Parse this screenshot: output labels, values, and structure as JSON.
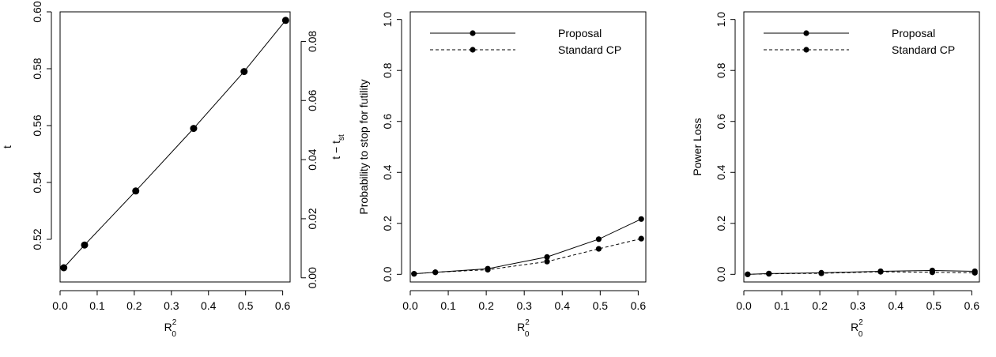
{
  "chart_data": [
    {
      "type": "line",
      "xlabel": "R",
      "xlabel_sup": "2",
      "xlabel_sub": "0",
      "ylabel": "t",
      "ylabel2": "t − t",
      "ylabel2_sub": "st",
      "xlim": [
        0,
        0.62
      ],
      "ylim": [
        0.505,
        0.6
      ],
      "ylim2": [
        -0.0014,
        0.09
      ],
      "xticks": [
        "0.0",
        "0.1",
        "0.2",
        "0.3",
        "0.4",
        "0.5",
        "0.6"
      ],
      "yticks": [
        "0.52",
        "0.54",
        "0.56",
        "0.58",
        "0.60"
      ],
      "yticks2": [
        "0.00",
        "0.02",
        "0.04",
        "0.06",
        "0.08"
      ],
      "grid": false,
      "series": [
        {
          "style": "solid",
          "x": [
            0.01,
            0.066,
            0.204,
            0.36,
            0.496,
            0.608
          ],
          "y": [
            0.51,
            0.518,
            0.537,
            0.559,
            0.579,
            0.597
          ]
        }
      ]
    },
    {
      "type": "line",
      "xlabel": "R",
      "xlabel_sup": "2",
      "xlabel_sub": "0",
      "ylabel": "Probability to stop for futility",
      "xlim": [
        0,
        0.62
      ],
      "ylim": [
        -0.03,
        1.03
      ],
      "xticks": [
        "0.0",
        "0.1",
        "0.2",
        "0.3",
        "0.4",
        "0.5",
        "0.6"
      ],
      "yticks": [
        "0.0",
        "0.2",
        "0.4",
        "0.6",
        "0.8",
        "1.0"
      ],
      "grid": false,
      "legend_position": "top",
      "series": [
        {
          "name": "Proposal",
          "style": "solid",
          "x": [
            0.01,
            0.066,
            0.204,
            0.36,
            0.496,
            0.608
          ],
          "y": [
            0.002,
            0.008,
            0.022,
            0.068,
            0.138,
            0.217
          ]
        },
        {
          "name": "Standard CP",
          "style": "dashed",
          "x": [
            0.01,
            0.066,
            0.204,
            0.36,
            0.496,
            0.608
          ],
          "y": [
            0.002,
            0.008,
            0.018,
            0.05,
            0.1,
            0.14
          ]
        }
      ]
    },
    {
      "type": "line",
      "xlabel": "R",
      "xlabel_sup": "2",
      "xlabel_sub": "0",
      "ylabel": "Power Loss",
      "xlim": [
        0,
        0.62
      ],
      "ylim": [
        -0.03,
        1.03
      ],
      "xticks": [
        "0.0",
        "0.1",
        "0.2",
        "0.3",
        "0.4",
        "0.5",
        "0.6"
      ],
      "yticks": [
        "0.0",
        "0.2",
        "0.4",
        "0.6",
        "0.8",
        "1.0"
      ],
      "grid": false,
      "legend_position": "top",
      "series": [
        {
          "name": "Proposal",
          "style": "solid",
          "x": [
            0.01,
            0.066,
            0.204,
            0.36,
            0.496,
            0.608
          ],
          "y": [
            0.0,
            0.003,
            0.006,
            0.012,
            0.015,
            0.012
          ]
        },
        {
          "name": "Standard CP",
          "style": "dashed",
          "x": [
            0.01,
            0.066,
            0.204,
            0.36,
            0.496,
            0.608
          ],
          "y": [
            0.0,
            0.002,
            0.004,
            0.01,
            0.008,
            0.006
          ]
        }
      ]
    }
  ]
}
